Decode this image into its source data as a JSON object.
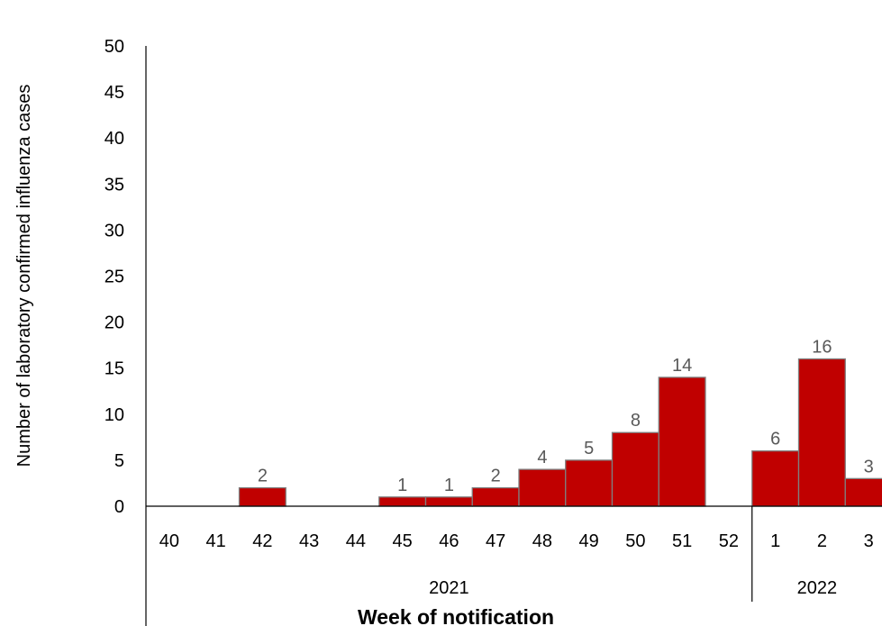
{
  "chart_data": {
    "type": "bar",
    "title": "",
    "xlabel": "Week of notification",
    "ylabel": "Number of laboratory confirmed influenza cases",
    "ylim": [
      0,
      50
    ],
    "yticks": [
      0,
      5,
      10,
      15,
      20,
      25,
      30,
      35,
      40,
      45,
      50
    ],
    "grid": false,
    "categories": [
      "40",
      "41",
      "42",
      "43",
      "44",
      "45",
      "46",
      "47",
      "48",
      "49",
      "50",
      "51",
      "52",
      "1",
      "2",
      "3"
    ],
    "values": [
      0,
      0,
      2,
      0,
      0,
      1,
      1,
      2,
      4,
      5,
      8,
      14,
      0,
      6,
      16,
      3
    ],
    "data_labels": [
      "",
      "",
      "2",
      "",
      "",
      "1",
      "1",
      "2",
      "4",
      "5",
      "8",
      "14",
      "",
      "6",
      "16",
      "3"
    ],
    "year_groups": [
      {
        "label": "2021",
        "start": 0,
        "count": 13
      },
      {
        "label": "2022",
        "start": 13,
        "count": 3
      }
    ],
    "bar_color": "#C00000",
    "bar_edge_color": "#7F7F7F"
  }
}
